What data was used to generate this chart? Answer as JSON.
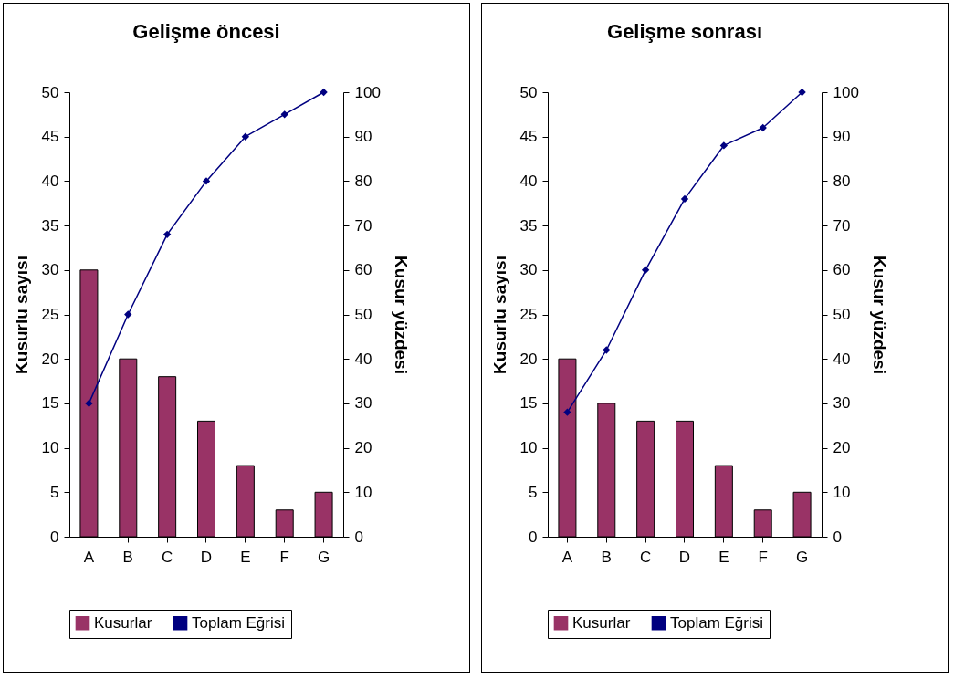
{
  "chart_data": [
    {
      "type": "bar",
      "title": "Gelişme öncesi",
      "categories": [
        "A",
        "B",
        "C",
        "D",
        "E",
        "F",
        "G"
      ],
      "ylabel": "Kusurlu sayısı",
      "y2label": "Kusur yüzdesi",
      "ylim": [
        0,
        50
      ],
      "yticks": [
        0,
        5,
        10,
        15,
        20,
        25,
        30,
        35,
        40,
        45,
        50
      ],
      "y2lim": [
        0,
        100
      ],
      "y2ticks": [
        0,
        10,
        20,
        30,
        40,
        50,
        60,
        70,
        80,
        90,
        100
      ],
      "legend": "bottom",
      "marker": "diamond",
      "series": [
        {
          "name": "Kusurlar",
          "color": "#993366",
          "values": [
            30,
            20,
            18,
            13,
            8,
            3,
            5
          ]
        },
        {
          "name": "Toplam Eğrisi",
          "type": "line",
          "axis": "y2",
          "color": "#000080",
          "values": [
            30,
            50,
            68,
            80,
            90,
            95,
            100
          ]
        }
      ]
    },
    {
      "type": "bar",
      "title": "Gelişme sonrası",
      "categories": [
        "A",
        "B",
        "C",
        "D",
        "E",
        "F",
        "G"
      ],
      "ylabel": "Kusurlu sayısı",
      "y2label": "Kusur yüzdesi",
      "ylim": [
        0,
        50
      ],
      "yticks": [
        0,
        5,
        10,
        15,
        20,
        25,
        30,
        35,
        40,
        45,
        50
      ],
      "y2lim": [
        0,
        100
      ],
      "y2ticks": [
        0,
        10,
        20,
        30,
        40,
        50,
        60,
        70,
        80,
        90,
        100
      ],
      "legend": "bottom",
      "marker": "diamond",
      "series": [
        {
          "name": "Kusurlar",
          "color": "#993366",
          "values": [
            20,
            15,
            13,
            13,
            8,
            3,
            5
          ]
        },
        {
          "name": "Toplam Eğrisi",
          "type": "line",
          "axis": "y2",
          "color": "#000080",
          "values": [
            28,
            42,
            60,
            76,
            88,
            92,
            100
          ]
        }
      ]
    }
  ]
}
